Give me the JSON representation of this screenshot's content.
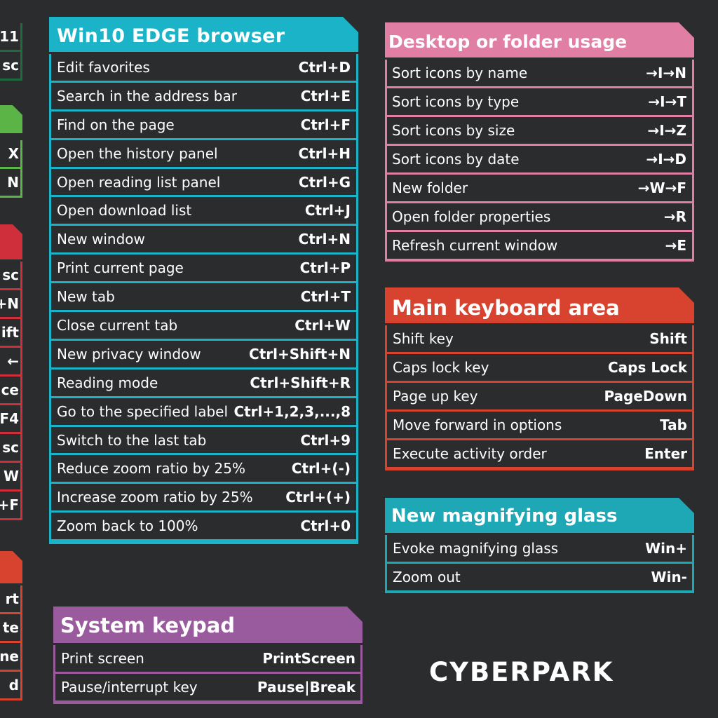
{
  "colors": {
    "background": "#2a2c2e",
    "edge": "#1ab3c8",
    "desktop": "#e07fa3",
    "main_keyboard": "#d7432e",
    "magnifier": "#1ea8b6",
    "system_keypad": "#9a5a9e",
    "left_green_dark": "#1d6b3f",
    "left_green": "#5ab446",
    "left_red": "#cf2f3a",
    "left_orange": "#d7432e"
  },
  "edge": {
    "title": "Win10 EDGE browser",
    "rows": [
      {
        "label": "Edit favorites",
        "key": "Ctrl+D"
      },
      {
        "label": "Search in the address bar",
        "key": "Ctrl+E"
      },
      {
        "label": "Find on the page",
        "key": "Ctrl+F"
      },
      {
        "label": "Open the history panel",
        "key": "Ctrl+H"
      },
      {
        "label": "Open reading list panel",
        "key": "Ctrl+G"
      },
      {
        "label": "Open download list",
        "key": "Ctrl+J"
      },
      {
        "label": "New window",
        "key": "Ctrl+N"
      },
      {
        "label": "Print current page",
        "key": "Ctrl+P"
      },
      {
        "label": "New tab",
        "key": "Ctrl+T"
      },
      {
        "label": "Close current tab",
        "key": "Ctrl+W"
      },
      {
        "label": "New privacy window",
        "key": "Ctrl+Shift+N"
      },
      {
        "label": "Reading mode",
        "key": "Ctrl+Shift+R"
      },
      {
        "label": "Go to the specified label",
        "key": "Ctrl+1,2,3,...,8"
      },
      {
        "label": "Switch to the last tab",
        "key": "Ctrl+9"
      },
      {
        "label": "Reduce zoom ratio by 25%",
        "key": "Ctrl+(-)"
      },
      {
        "label": "Increase zoom ratio by 25%",
        "key": "Ctrl+(+)"
      },
      {
        "label": "Zoom back to 100%",
        "key": "Ctrl+0"
      }
    ]
  },
  "desktop": {
    "title": "Desktop or folder usage",
    "rows": [
      {
        "label": "Sort icons by name",
        "key": "→I→N"
      },
      {
        "label": "Sort icons by type",
        "key": "→I→T"
      },
      {
        "label": "Sort icons by size",
        "key": "→I→Z"
      },
      {
        "label": "Sort icons by date",
        "key": "→I→D"
      },
      {
        "label": "New folder",
        "key": "→W→F"
      },
      {
        "label": "Open folder properties",
        "key": "→R"
      },
      {
        "label": "Refresh current window",
        "key": "→E"
      }
    ]
  },
  "main_keyboard": {
    "title": "Main keyboard area",
    "rows": [
      {
        "label": "Shift key",
        "key": "Shift"
      },
      {
        "label": "Caps lock key",
        "key": "Caps Lock"
      },
      {
        "label": "Page up key",
        "key": "PageDown"
      },
      {
        "label": "Move forward in options",
        "key": "Tab"
      },
      {
        "label": "Execute activity order",
        "key": "Enter"
      }
    ]
  },
  "magnifier": {
    "title": "New magnifying glass",
    "rows": [
      {
        "label": "Evoke magnifying glass",
        "key": "Win+"
      },
      {
        "label": "Zoom out",
        "key": "Win-"
      }
    ]
  },
  "system_keypad": {
    "title": "System keypad",
    "rows": [
      {
        "label": "Print screen",
        "key": "PrintScreen"
      },
      {
        "label": "Pause/interrupt key",
        "key": "Pause|Break"
      }
    ]
  },
  "left_fragments": {
    "green_dark": [
      "11",
      "sc"
    ],
    "green": [
      "X",
      "N"
    ],
    "red": [
      "sc",
      "+N",
      "ift",
      "←",
      "ce",
      "F4",
      "sc",
      "W",
      "+F"
    ],
    "orange": [
      "rt",
      "te",
      "ne",
      "d"
    ]
  },
  "logo": {
    "text": "CYBERPARK"
  }
}
